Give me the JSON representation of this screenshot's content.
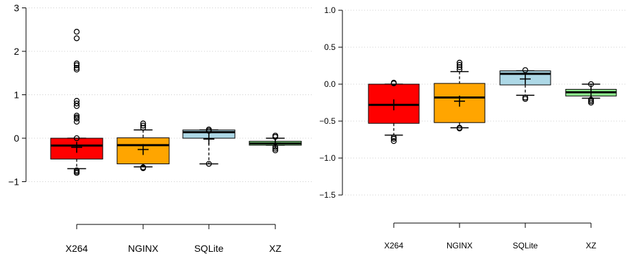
{
  "chart_data": [
    {
      "type": "box",
      "title": "",
      "xlabel": "",
      "ylabel": "",
      "ylim": [
        -1.5,
        3
      ],
      "yticks": [
        -1,
        0,
        1,
        2,
        3
      ],
      "ytick_labels": [
        "−1",
        "0",
        "1",
        "2",
        "3"
      ],
      "grid": "horizontal-dotted",
      "categories": [
        "X264",
        "NGINX",
        "SQLite",
        "XZ"
      ],
      "colors": [
        "#ff0000",
        "#ffa500",
        "#add8e6",
        "#90ee90"
      ],
      "boxes": [
        {
          "q1": -0.48,
          "median": -0.17,
          "q3": 0.0,
          "whisker_low": -0.7,
          "whisker_high": 0.0,
          "mean": -0.21,
          "outliers": [
            -0.74,
            -0.77,
            -0.8,
            0.0,
            0.38,
            0.45,
            0.48,
            0.52,
            0.74,
            0.8,
            0.86,
            1.58,
            1.62,
            1.68,
            1.72,
            2.3,
            2.45
          ]
        },
        {
          "q1": -0.59,
          "median": -0.16,
          "q3": 0.01,
          "whisker_low": -0.66,
          "whisker_high": 0.19,
          "mean": -0.26,
          "outliers": [
            -0.67,
            -0.69,
            0.24,
            0.29,
            0.34
          ]
        },
        {
          "q1": 0.0,
          "median": 0.14,
          "q3": 0.19,
          "whisker_low": -0.59,
          "whisker_high": 0.19,
          "mean": -0.02,
          "outliers": [
            -0.59,
            0.17,
            0.2
          ]
        },
        {
          "q1": -0.16,
          "median": -0.12,
          "q3": -0.07,
          "whisker_low": -0.16,
          "whisker_high": 0.0,
          "mean": -0.11,
          "outliers": [
            -0.2,
            -0.24,
            -0.28,
            0.03,
            0.06
          ]
        }
      ]
    },
    {
      "type": "box",
      "title": "",
      "xlabel": "",
      "ylabel": "",
      "ylim": [
        -1.5,
        1.0
      ],
      "yticks": [
        -1.5,
        -1.0,
        -0.5,
        0.0,
        0.5,
        1.0
      ],
      "ytick_labels": [
        "−1.5",
        "−1.0",
        "−0.5",
        "0.0",
        "0.5",
        "1.0"
      ],
      "grid": "horizontal-dotted",
      "categories": [
        "X264",
        "NGINX",
        "SQLite",
        "XZ"
      ],
      "colors": [
        "#ff0000",
        "#ffa500",
        "#add8e6",
        "#90ee90"
      ],
      "boxes": [
        {
          "q1": -0.53,
          "median": -0.28,
          "q3": 0.0,
          "whisker_low": -0.69,
          "whisker_high": 0.0,
          "mean": -0.28,
          "outliers": [
            -0.72,
            -0.74,
            -0.77,
            0.01,
            0.02
          ]
        },
        {
          "q1": -0.52,
          "median": -0.18,
          "q3": 0.01,
          "whisker_low": -0.59,
          "whisker_high": 0.17,
          "mean": -0.23,
          "outliers": [
            -0.59,
            -0.6,
            0.2,
            0.23,
            0.26,
            0.29
          ]
        },
        {
          "q1": -0.01,
          "median": 0.14,
          "q3": 0.18,
          "whisker_low": -0.15,
          "whisker_high": 0.18,
          "mean": 0.07,
          "outliers": [
            -0.18,
            -0.2,
            0.19
          ]
        },
        {
          "q1": -0.16,
          "median": -0.11,
          "q3": -0.07,
          "whisker_low": -0.19,
          "whisker_high": 0.0,
          "mean": -0.11,
          "outliers": [
            -0.21,
            -0.23,
            -0.25,
            0.0
          ]
        }
      ]
    }
  ]
}
